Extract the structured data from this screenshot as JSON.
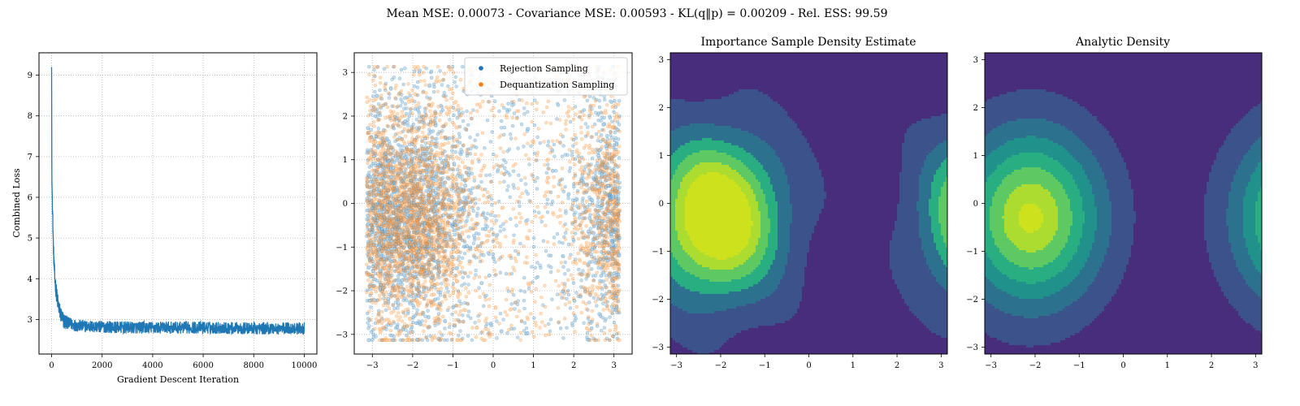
{
  "suptitle": "Mean MSE: 0.00073 - Covariance MSE: 0.00593 - KL(q‖p) = 0.00209 - Rel. ESS: 99.59",
  "colors": {
    "blue": "#1f77b4",
    "orange": "#ff7f0e",
    "viridis": [
      "#440154",
      "#472d7b",
      "#3b528b",
      "#2c728e",
      "#21918c",
      "#28ae80",
      "#5ec962",
      "#addc30",
      "#cde11d"
    ]
  },
  "chart_data": [
    {
      "type": "line",
      "title": "",
      "xlabel": "Gradient Descent Iteration",
      "ylabel": "Combined Loss",
      "xlim": [
        -500,
        10500
      ],
      "ylim": [
        2.15,
        9.55
      ],
      "xticks": [
        0,
        2000,
        4000,
        6000,
        8000,
        10000
      ],
      "yticks": [
        3,
        4,
        5,
        6,
        7,
        8,
        9
      ],
      "grid": true,
      "series": [
        {
          "name": "Combined Loss",
          "x": [
            0,
            10,
            20,
            40,
            60,
            80,
            100,
            130,
            160,
            200,
            250,
            300,
            400,
            500,
            700,
            1000,
            1500,
            2000,
            3000,
            4000,
            5000,
            6000,
            7000,
            8000,
            9000,
            10000
          ],
          "y": [
            9.2,
            6.4,
            6.2,
            5.6,
            5.0,
            4.6,
            4.3,
            4.0,
            3.8,
            3.6,
            3.4,
            3.25,
            3.05,
            2.95,
            2.9,
            2.85,
            2.83,
            2.82,
            2.8,
            2.8,
            2.8,
            2.8,
            2.79,
            2.78,
            2.78,
            2.78
          ],
          "noise_band": 0.15
        }
      ]
    },
    {
      "type": "scatter",
      "title": "",
      "xlim": [
        -3.45,
        3.45
      ],
      "ylim": [
        -3.45,
        3.45
      ],
      "xticks": [
        -3,
        -2,
        -1,
        0,
        1,
        2,
        3
      ],
      "yticks": [
        -3,
        -2,
        -1,
        0,
        1,
        2,
        3
      ],
      "grid": true,
      "legend": "top-right",
      "series": [
        {
          "name": "Rejection Sampling",
          "points_shown": 3000
        },
        {
          "name": "Dequantization Sampling",
          "points_shown": 3000
        }
      ]
    },
    {
      "type": "heatmap",
      "title": "Importance Sample Density Estimate",
      "xlim": [
        -3.14159,
        3.14159
      ],
      "ylim": [
        -3.14159,
        3.14159
      ],
      "xticks": [
        -3,
        -2,
        -1,
        0,
        1,
        2,
        3
      ],
      "yticks": [
        -3,
        -2,
        -1,
        0,
        1,
        2,
        3
      ],
      "peak": [
        -2.1,
        -0.3
      ]
    },
    {
      "type": "heatmap",
      "title": "Analytic Density",
      "xlim": [
        -3.14159,
        3.14159
      ],
      "ylim": [
        -3.14159,
        3.14159
      ],
      "xticks": [
        -3,
        -2,
        -1,
        0,
        1,
        2,
        3
      ],
      "yticks": [
        -3,
        -2,
        -1,
        0,
        1,
        2,
        3
      ],
      "peak": [
        -2.1,
        -0.3
      ]
    }
  ]
}
